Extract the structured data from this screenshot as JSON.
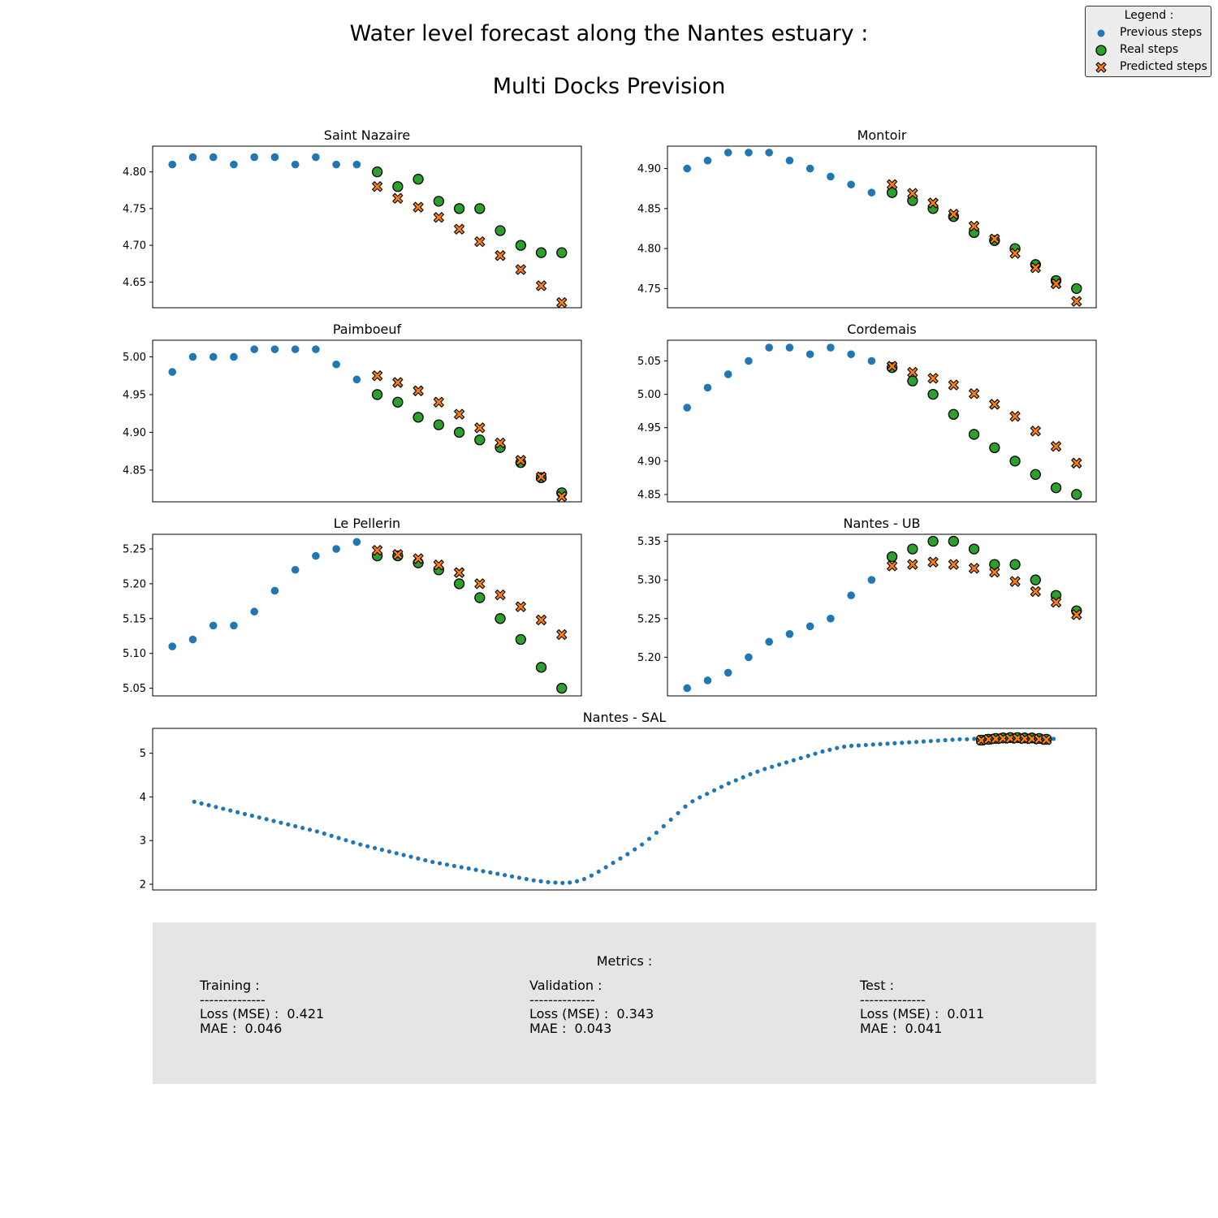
{
  "title": "Water level forecast along the Nantes estuary :",
  "subtitle": "Multi Docks Prevision",
  "legend": {
    "title": "Legend :",
    "previous": "Previous steps",
    "real": "Real steps",
    "predicted": "Predicted steps"
  },
  "colors": {
    "previous": "#1f77b4",
    "real": "#2ca02c",
    "predicted": "#ff7f0e",
    "edge": "#000000"
  },
  "chart_data": [
    {
      "type": "scatter",
      "title": "Saint Nazaire",
      "ylim": [
        4.615,
        4.835
      ],
      "yticks": [
        "4.65",
        "4.70",
        "4.75",
        "4.80"
      ],
      "previous": {
        "x": [
          1,
          2,
          3,
          4,
          5,
          6,
          7,
          8,
          9,
          10
        ],
        "y": [
          4.81,
          4.82,
          4.82,
          4.81,
          4.82,
          4.82,
          4.81,
          4.82,
          4.81,
          4.81
        ]
      },
      "real": {
        "x": [
          11,
          12,
          13,
          14,
          15,
          16,
          17,
          18,
          19,
          20
        ],
        "y": [
          4.8,
          4.78,
          4.79,
          4.76,
          4.75,
          4.75,
          4.72,
          4.7,
          4.69,
          4.69
        ]
      },
      "predicted": {
        "x": [
          11,
          12,
          13,
          14,
          15,
          16,
          17,
          18,
          19,
          20
        ],
        "y": [
          4.78,
          4.764,
          4.752,
          4.738,
          4.722,
          4.705,
          4.686,
          4.667,
          4.645,
          4.622
        ]
      }
    },
    {
      "type": "scatter",
      "title": "Montoir",
      "ylim": [
        4.726,
        4.928
      ],
      "yticks": [
        "4.75",
        "4.80",
        "4.85",
        "4.90"
      ],
      "previous": {
        "x": [
          1,
          2,
          3,
          4,
          5,
          6,
          7,
          8,
          9,
          10
        ],
        "y": [
          4.9,
          4.91,
          4.92,
          4.92,
          4.92,
          4.91,
          4.9,
          4.89,
          4.88,
          4.87
        ]
      },
      "real": {
        "x": [
          11,
          12,
          13,
          14,
          15,
          16,
          17,
          18,
          19,
          20
        ],
        "y": [
          4.87,
          4.86,
          4.85,
          4.84,
          4.82,
          4.81,
          4.8,
          4.78,
          4.76,
          4.75
        ]
      },
      "predicted": {
        "x": [
          11,
          12,
          13,
          14,
          15,
          16,
          17,
          18,
          19,
          20
        ],
        "y": [
          4.88,
          4.869,
          4.857,
          4.843,
          4.828,
          4.812,
          4.794,
          4.776,
          4.756,
          4.734
        ]
      }
    },
    {
      "type": "scatter",
      "title": "Paimboeuf",
      "ylim": [
        4.808,
        5.022
      ],
      "yticks": [
        "4.85",
        "4.90",
        "4.95",
        "5.00"
      ],
      "previous": {
        "x": [
          1,
          2,
          3,
          4,
          5,
          6,
          7,
          8,
          9,
          10
        ],
        "y": [
          4.98,
          5.0,
          5.0,
          5.0,
          5.01,
          5.01,
          5.01,
          5.01,
          4.99,
          4.97
        ]
      },
      "real": {
        "x": [
          11,
          12,
          13,
          14,
          15,
          16,
          17,
          18,
          19,
          20
        ],
        "y": [
          4.95,
          4.94,
          4.92,
          4.91,
          4.9,
          4.89,
          4.88,
          4.86,
          4.84,
          4.82
        ]
      },
      "predicted": {
        "x": [
          11,
          12,
          13,
          14,
          15,
          16,
          17,
          18,
          19,
          20
        ],
        "y": [
          4.975,
          4.966,
          4.955,
          4.94,
          4.924,
          4.906,
          4.886,
          4.863,
          4.841,
          4.815
        ]
      }
    },
    {
      "type": "scatter",
      "title": "Cordemais",
      "ylim": [
        4.839,
        5.081
      ],
      "yticks": [
        "4.85",
        "4.90",
        "4.95",
        "5.00",
        "5.05"
      ],
      "previous": {
        "x": [
          1,
          2,
          3,
          4,
          5,
          6,
          7,
          8,
          9,
          10
        ],
        "y": [
          4.98,
          5.01,
          5.03,
          5.05,
          5.07,
          5.07,
          5.06,
          5.07,
          5.06,
          5.05
        ]
      },
      "real": {
        "x": [
          11,
          12,
          13,
          14,
          15,
          16,
          17,
          18,
          19,
          20
        ],
        "y": [
          5.04,
          5.02,
          5.0,
          4.97,
          4.94,
          4.92,
          4.9,
          4.88,
          4.86,
          4.85
        ]
      },
      "predicted": {
        "x": [
          11,
          12,
          13,
          14,
          15,
          16,
          17,
          18,
          19,
          20
        ],
        "y": [
          5.042,
          5.033,
          5.024,
          5.014,
          5.001,
          4.985,
          4.967,
          4.945,
          4.922,
          4.897
        ]
      }
    },
    {
      "type": "scatter",
      "title": "Le Pellerin",
      "ylim": [
        5.039,
        5.271
      ],
      "yticks": [
        "5.05",
        "5.10",
        "5.15",
        "5.20",
        "5.25"
      ],
      "previous": {
        "x": [
          1,
          2,
          3,
          4,
          5,
          6,
          7,
          8,
          9,
          10
        ],
        "y": [
          5.11,
          5.12,
          5.14,
          5.14,
          5.16,
          5.19,
          5.22,
          5.24,
          5.25,
          5.26
        ]
      },
      "real": {
        "x": [
          11,
          12,
          13,
          14,
          15,
          16,
          17,
          18,
          19,
          20
        ],
        "y": [
          5.24,
          5.24,
          5.23,
          5.22,
          5.2,
          5.18,
          5.15,
          5.12,
          5.08,
          5.05
        ]
      },
      "predicted": {
        "x": [
          11,
          12,
          13,
          14,
          15,
          16,
          17,
          18,
          19,
          20
        ],
        "y": [
          5.248,
          5.242,
          5.236,
          5.227,
          5.216,
          5.2,
          5.184,
          5.167,
          5.148,
          5.127
        ]
      }
    },
    {
      "type": "scatter",
      "title": "Nantes - UB",
      "ylim": [
        5.15,
        5.359
      ],
      "yticks": [
        "5.20",
        "5.25",
        "5.30",
        "5.35"
      ],
      "previous": {
        "x": [
          1,
          2,
          3,
          4,
          5,
          6,
          7,
          8,
          9,
          10
        ],
        "y": [
          5.16,
          5.17,
          5.18,
          5.2,
          5.22,
          5.23,
          5.24,
          5.25,
          5.28,
          5.3
        ]
      },
      "real": {
        "x": [
          11,
          12,
          13,
          14,
          15,
          16,
          17,
          18,
          19,
          20
        ],
        "y": [
          5.33,
          5.34,
          5.35,
          5.35,
          5.34,
          5.32,
          5.32,
          5.3,
          5.28,
          5.26
        ]
      },
      "predicted": {
        "x": [
          11,
          12,
          13,
          14,
          15,
          16,
          17,
          18,
          19,
          20
        ],
        "y": [
          5.318,
          5.32,
          5.323,
          5.32,
          5.315,
          5.31,
          5.298,
          5.285,
          5.271,
          5.255
        ]
      }
    },
    {
      "type": "scatter",
      "title": "Nantes - SAL",
      "ylim": [
        1.87,
        5.57
      ],
      "yticks": [
        "2",
        "3",
        "4",
        "5"
      ],
      "previous": {
        "x": [
          1,
          2,
          3,
          4,
          5,
          6,
          7,
          8,
          9,
          10,
          11,
          12,
          13,
          14,
          15,
          16,
          17,
          18,
          19,
          20,
          21,
          22,
          23,
          24,
          25,
          26,
          27,
          28,
          29,
          30,
          31,
          32,
          33,
          34,
          35,
          36,
          37,
          38,
          39,
          40,
          41,
          42,
          43,
          44,
          45,
          46,
          47,
          48,
          49,
          50,
          51,
          52,
          53,
          54,
          55,
          56,
          57,
          58,
          59,
          60,
          61,
          62,
          63,
          64,
          65,
          66,
          67,
          68,
          69,
          70,
          71,
          72,
          73,
          74,
          75,
          76,
          77,
          78,
          79,
          80,
          81,
          82,
          83,
          84,
          85,
          86,
          87,
          88,
          89,
          90,
          91,
          92,
          93,
          94,
          95,
          96,
          97,
          98,
          99,
          100,
          101,
          102,
          103,
          104,
          105,
          106,
          107,
          108,
          109,
          110,
          111,
          112,
          113,
          114,
          115,
          116,
          117,
          118,
          119,
          120
        ],
        "y": [
          3.89,
          3.85,
          3.81,
          3.77,
          3.73,
          3.69,
          3.65,
          3.61,
          3.57,
          3.53,
          3.49,
          3.45,
          3.41,
          3.37,
          3.33,
          3.29,
          3.25,
          3.21,
          3.16,
          3.11,
          3.06,
          3.01,
          2.96,
          2.91,
          2.87,
          2.83,
          2.79,
          2.75,
          2.71,
          2.67,
          2.63,
          2.59,
          2.55,
          2.51,
          2.48,
          2.45,
          2.42,
          2.39,
          2.36,
          2.33,
          2.3,
          2.27,
          2.24,
          2.21,
          2.18,
          2.15,
          2.12,
          2.09,
          2.07,
          2.05,
          2.04,
          2.03,
          2.04,
          2.07,
          2.12,
          2.2,
          2.29,
          2.39,
          2.49,
          2.59,
          2.69,
          2.8,
          2.91,
          3.04,
          3.18,
          3.33,
          3.48,
          3.63,
          3.78,
          3.9,
          3.99,
          4.07,
          4.15,
          4.23,
          4.31,
          4.38,
          4.45,
          4.52,
          4.58,
          4.64,
          4.69,
          4.74,
          4.79,
          4.84,
          4.89,
          4.94,
          4.99,
          5.04,
          5.08,
          5.12,
          5.15,
          5.17,
          5.18,
          5.19,
          5.2,
          5.21,
          5.22,
          5.23,
          5.24,
          5.25,
          5.26,
          5.27,
          5.28,
          5.29,
          5.3,
          5.31,
          5.32,
          5.32,
          5.33,
          5.33,
          5.33,
          5.33,
          5.33,
          5.33,
          5.33,
          5.33,
          5.33,
          5.33,
          5.33,
          5.33
        ]
      },
      "real": {
        "x": [
          110,
          111,
          112,
          113,
          114,
          115,
          116,
          117,
          118,
          119
        ],
        "y": [
          5.3,
          5.32,
          5.34,
          5.35,
          5.36,
          5.36,
          5.35,
          5.35,
          5.34,
          5.32
        ]
      },
      "predicted": {
        "x": [
          110,
          111,
          112,
          113,
          114,
          115,
          116,
          117,
          118,
          119
        ],
        "y": [
          5.3,
          5.32,
          5.33,
          5.34,
          5.34,
          5.34,
          5.33,
          5.33,
          5.32,
          5.31
        ]
      }
    }
  ],
  "metrics": {
    "title": "Metrics :",
    "sep": "--------------",
    "training": {
      "label": "Training :",
      "loss": "Loss (MSE) :  0.421",
      "mae": "MAE :  0.046"
    },
    "validation": {
      "label": "Validation :",
      "loss": "Loss (MSE) :  0.343",
      "mae": "MAE :  0.043"
    },
    "test": {
      "label": "Test :",
      "loss": "Loss (MSE) :  0.011",
      "mae": "MAE :  0.041"
    }
  }
}
